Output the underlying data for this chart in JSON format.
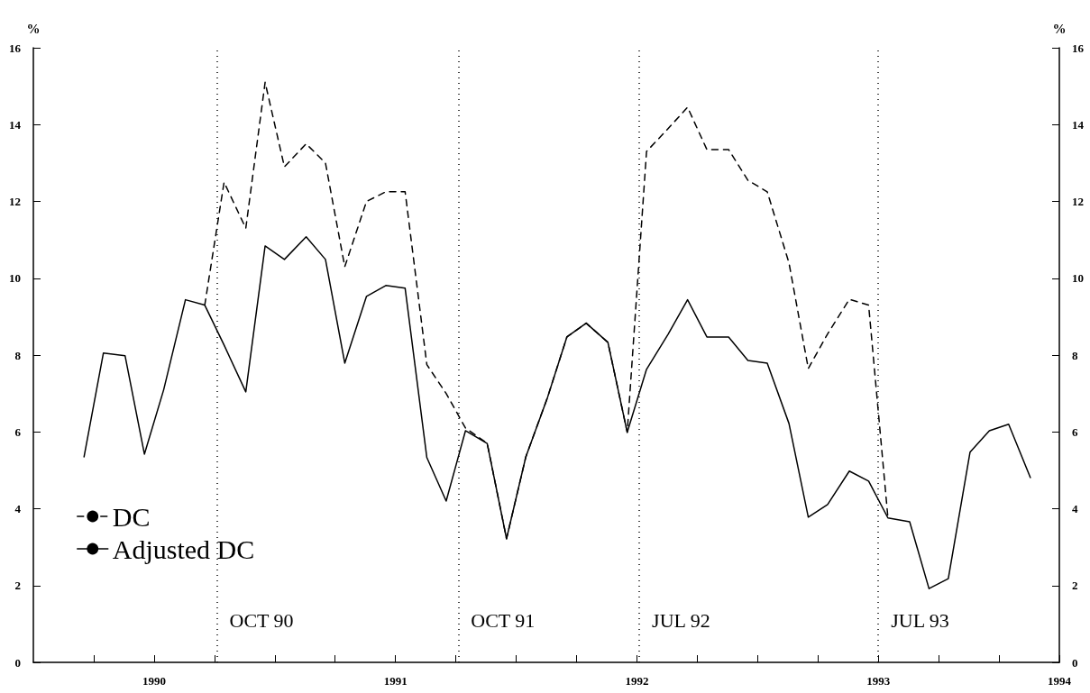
{
  "chart_data": {
    "type": "line",
    "x": [
      1989.71,
      1989.79,
      1989.88,
      1989.96,
      1990.04,
      1990.13,
      1990.21,
      1990.29,
      1990.38,
      1990.46,
      1990.54,
      1990.63,
      1990.71,
      1990.79,
      1990.88,
      1990.96,
      1991.04,
      1991.13,
      1991.21,
      1991.29,
      1991.38,
      1991.46,
      1991.54,
      1991.63,
      1991.71,
      1991.79,
      1991.88,
      1991.96,
      1992.04,
      1992.13,
      1992.21,
      1992.29,
      1992.38,
      1992.46,
      1992.54,
      1992.63,
      1992.71,
      1992.79,
      1992.88,
      1992.96,
      1993.04,
      1993.13,
      1993.21,
      1993.29,
      1993.38,
      1993.46,
      1993.54,
      1993.63
    ],
    "series": [
      {
        "name": "DC",
        "color": "#000000",
        "line_style": "dashed",
        "values": [
          null,
          null,
          null,
          null,
          null,
          null,
          9.3,
          12.5,
          11.3,
          15.1,
          12.9,
          13.5,
          13.0,
          10.3,
          12.0,
          12.25,
          12.25,
          7.75,
          7.0,
          6.1,
          5.7,
          3.22,
          5.35,
          6.9,
          8.47,
          8.83,
          8.33,
          5.99,
          13.3,
          13.9,
          14.45,
          13.35,
          13.35,
          12.55,
          12.25,
          10.4,
          7.65,
          8.55,
          9.45,
          9.3,
          3.76,
          null,
          null,
          null,
          null,
          null,
          null,
          null
        ]
      },
      {
        "name": "Adjusted DC",
        "color": "#000000",
        "line_style": "solid",
        "values": [
          5.35,
          8.05,
          7.98,
          5.42,
          7.1,
          9.44,
          9.3,
          8.26,
          7.04,
          10.84,
          10.49,
          11.08,
          10.49,
          7.79,
          9.53,
          9.81,
          9.74,
          5.33,
          4.2,
          6.03,
          5.7,
          3.22,
          5.35,
          6.9,
          8.47,
          8.83,
          8.33,
          5.99,
          7.63,
          8.55,
          9.44,
          8.47,
          8.47,
          7.86,
          7.79,
          6.22,
          3.78,
          4.11,
          4.98,
          4.72,
          3.76,
          3.66,
          1.92,
          2.18,
          5.47,
          6.03,
          6.2,
          4.81
        ]
      }
    ],
    "xlim": [
      1989.5,
      1993.75
    ],
    "xticks": [
      {
        "value": 1989.75,
        "label": null
      },
      1990,
      {
        "value": 1990.25,
        "label": null
      },
      {
        "value": 1990.5,
        "label": null
      },
      {
        "value": 1990.75,
        "label": null
      },
      1991,
      {
        "value": 1991.25,
        "label": null
      },
      {
        "value": 1991.5,
        "label": null
      },
      {
        "value": 1991.75,
        "label": null
      },
      1992,
      {
        "value": 1992.25,
        "label": null
      },
      {
        "value": 1992.5,
        "label": null
      },
      {
        "value": 1992.75,
        "label": null
      },
      1993,
      {
        "value": 1993.25,
        "label": null
      },
      {
        "value": 1993.5,
        "label": null
      },
      {
        "value": 1993.75,
        "label": "1994"
      }
    ],
    "ylabel": "%",
    "y2label": "%",
    "ylim": [
      0,
      16
    ],
    "yticks": [
      0,
      2,
      4,
      6,
      8,
      10,
      12,
      14,
      16
    ],
    "y2lim": [
      0,
      16
    ],
    "y2ticks": [
      0,
      2,
      4,
      6,
      8,
      10,
      12,
      14,
      16
    ],
    "ref_lines": [
      {
        "axis": "x",
        "value": 1990.26,
        "label": "OCT 90",
        "line_style": "dotted"
      },
      {
        "axis": "x",
        "value": 1991.26,
        "label": "OCT 91",
        "line_style": "dotted"
      },
      {
        "axis": "x",
        "value": 1992.01,
        "label": "JUL 92",
        "line_style": "dotted"
      },
      {
        "axis": "x",
        "value": 1993.0,
        "label": "JUL 93",
        "line_style": "dotted"
      }
    ],
    "legend": "bottom left",
    "grid": false,
    "marker": "none"
  }
}
